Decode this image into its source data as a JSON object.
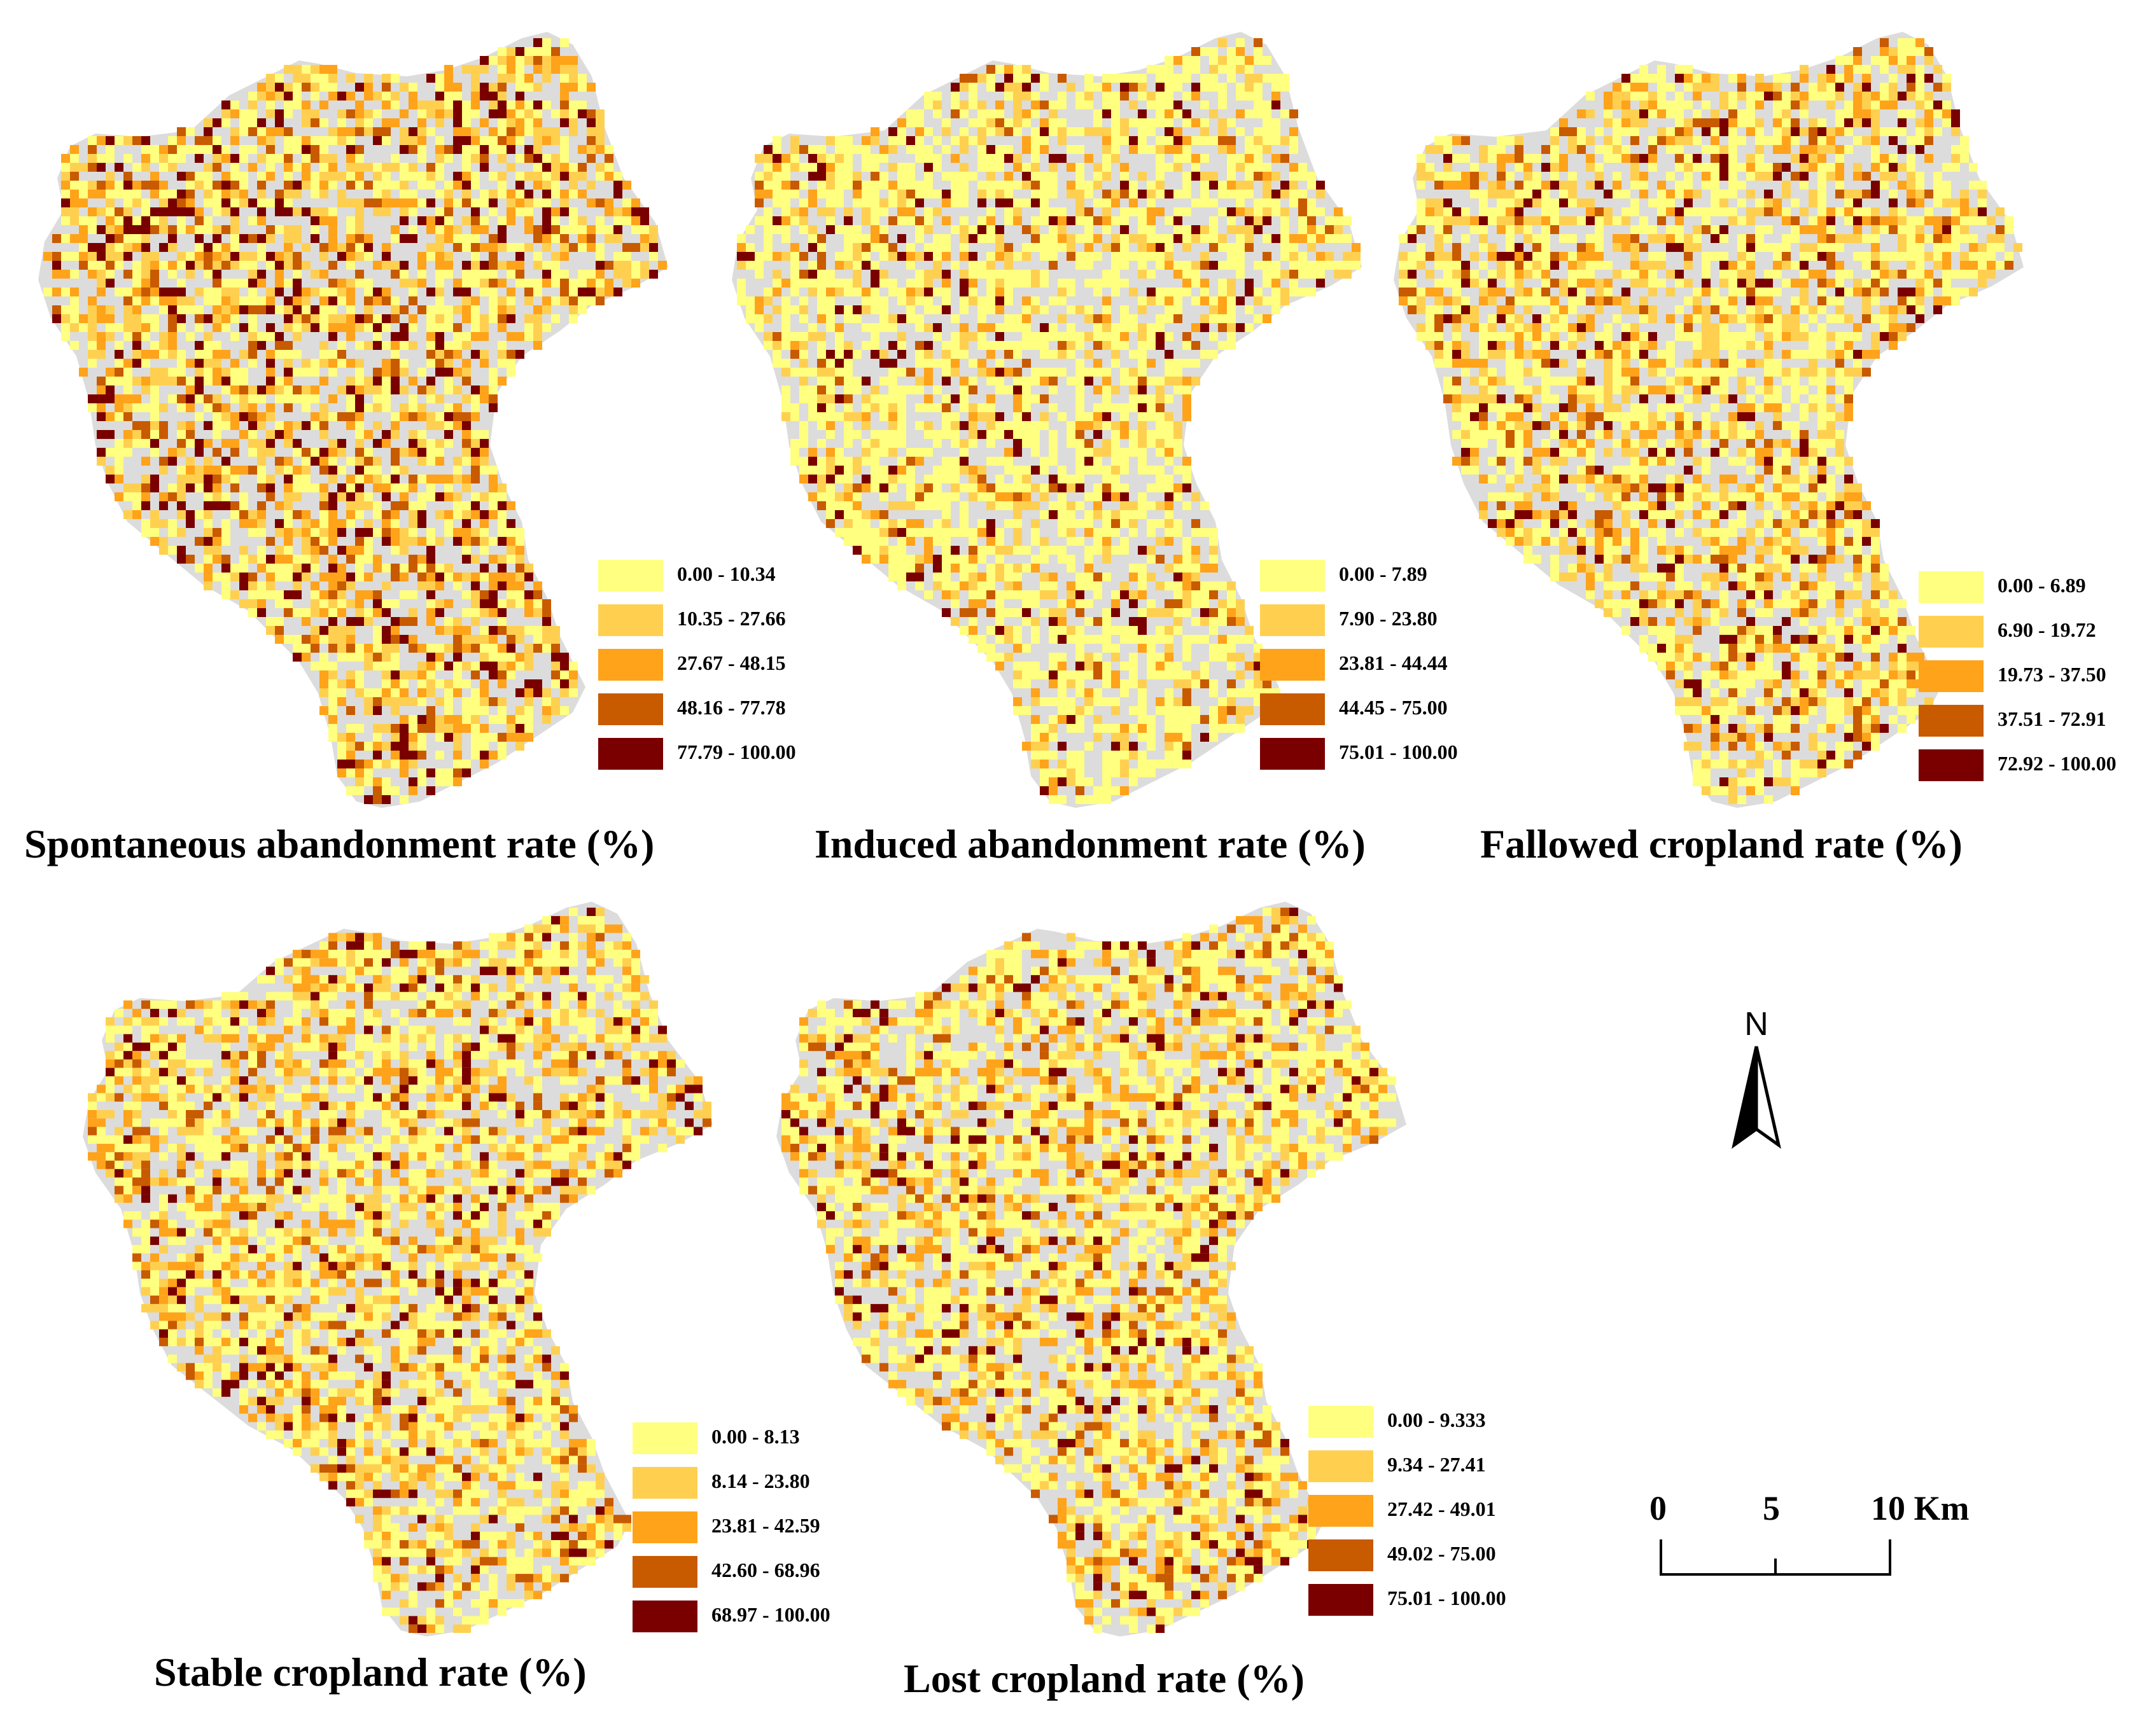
{
  "colors": {
    "background_region": "#dcdcdc",
    "class_1": "#ffff80",
    "class_2": "#ffd050",
    "class_3": "#ffa31a",
    "class_4": "#c85a00",
    "class_5": "#7a0000"
  },
  "panels": [
    {
      "caption": "Spontaneous abandonment rate (%)",
      "legend": [
        "0.00 - 10.34",
        "10.35 - 27.66",
        "27.67 - 48.15",
        "48.16 - 77.78",
        "77.79 - 100.00"
      ]
    },
    {
      "caption": "Induced abandonment rate (%)",
      "legend": [
        "0.00 - 7.89",
        "7.90 - 23.80",
        "23.81 - 44.44",
        "44.45 - 75.00",
        "75.01 - 100.00"
      ]
    },
    {
      "caption": "Fallowed cropland rate (%)",
      "legend": [
        "0.00 - 6.89",
        "6.90 - 19.72",
        "19.73 - 37.50",
        "37.51 - 72.91",
        "72.92 - 100.00"
      ]
    },
    {
      "caption": "Stable cropland rate (%)",
      "legend": [
        "0.00 - 8.13",
        "8.14 - 23.80",
        "23.81 - 42.59",
        "42.60 - 68.96",
        "68.97 - 100.00"
      ]
    },
    {
      "caption": "Lost cropland rate (%)",
      "legend": [
        "0.00 - 9.333",
        "9.34 - 27.41",
        "27.42 - 49.01",
        "49.02 - 75.00",
        "75.01 - 100.00"
      ]
    }
  ],
  "north_arrow": {
    "label": "N",
    "icon": "north-arrow-icon"
  },
  "scale_bar": {
    "ticks": [
      "0",
      "5",
      "10 Km"
    ]
  }
}
